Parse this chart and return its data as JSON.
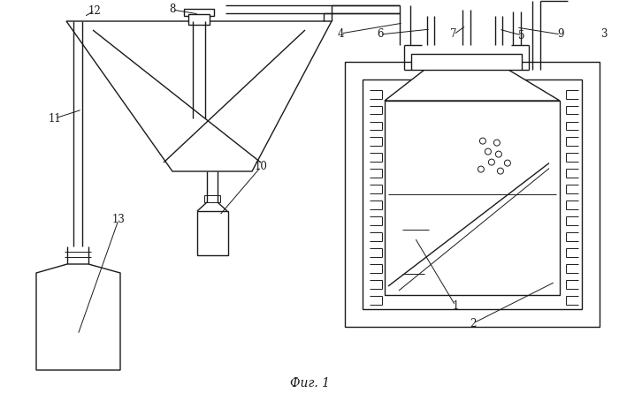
{
  "title": "Фиг. 1",
  "background_color": "#ffffff",
  "line_color": "#1a1a1a",
  "lw": 1.0,
  "tlw": 0.7
}
